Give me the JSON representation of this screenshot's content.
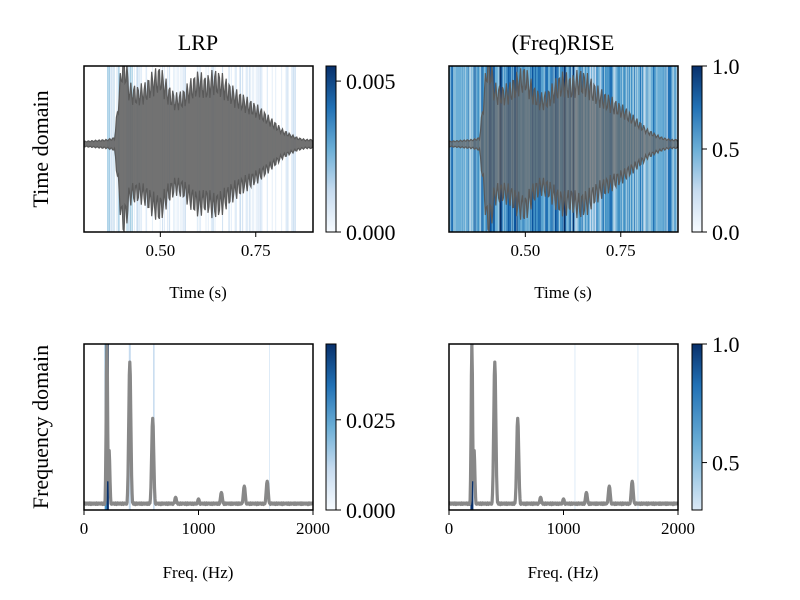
{
  "chart_data": [
    {
      "id": "lrp-time",
      "type": "line",
      "title": "LRP",
      "ylabel": "Time domain",
      "xlabel": "Time (s)",
      "xlim": [
        0.3,
        0.9
      ],
      "xticks": [
        {
          "value": 0.5,
          "label": "0.50"
        },
        {
          "value": 0.75,
          "label": "0.75"
        }
      ],
      "series_description": "audio waveform (amplitude envelope)",
      "envelope_x": [
        0.3,
        0.33,
        0.36,
        0.38,
        0.39,
        0.4,
        0.41,
        0.42,
        0.44,
        0.46,
        0.48,
        0.5,
        0.52,
        0.54,
        0.56,
        0.58,
        0.6,
        0.62,
        0.64,
        0.66,
        0.68,
        0.7,
        0.72,
        0.74,
        0.76,
        0.78,
        0.8,
        0.82,
        0.84,
        0.86,
        0.88,
        0.9
      ],
      "envelope_y": [
        0.03,
        0.04,
        0.05,
        0.07,
        0.5,
        1.0,
        0.92,
        0.65,
        0.62,
        0.66,
        0.78,
        0.84,
        0.64,
        0.54,
        0.58,
        0.7,
        0.78,
        0.72,
        0.8,
        0.76,
        0.66,
        0.58,
        0.52,
        0.46,
        0.4,
        0.32,
        0.24,
        0.16,
        0.11,
        0.07,
        0.05,
        0.05
      ],
      "relevance_cmap": "Blues",
      "colorbar": {
        "range": [
          0,
          0.0055
        ],
        "ticks": [
          {
            "value": 0.0,
            "label": "0.000"
          },
          {
            "value": 0.005,
            "label": "0.005"
          }
        ]
      }
    },
    {
      "id": "freqrise-time",
      "type": "line",
      "title": "(Freq)RISE",
      "xlabel": "Time (s)",
      "xlim": [
        0.3,
        0.9
      ],
      "xticks": [
        {
          "value": 0.5,
          "label": "0.50"
        },
        {
          "value": 0.75,
          "label": "0.75"
        }
      ],
      "series_description": "audio waveform (amplitude envelope)",
      "relevance_cmap": "Blues",
      "colorbar": {
        "range": [
          0,
          1.0
        ],
        "ticks": [
          {
            "value": 0.0,
            "label": "0.0"
          },
          {
            "value": 0.5,
            "label": "0.5"
          },
          {
            "value": 1.0,
            "label": "1.0"
          }
        ]
      }
    },
    {
      "id": "lrp-freq",
      "type": "line",
      "ylabel": "Frequency domain",
      "xlabel": "Freq. (Hz)",
      "xlim": [
        0,
        2000
      ],
      "xticks": [
        {
          "value": 0,
          "label": "0"
        },
        {
          "value": 1000,
          "label": "1000"
        },
        {
          "value": 2000,
          "label": "2000"
        }
      ],
      "peaks_hz": [
        200,
        220,
        400,
        600,
        800,
        1000,
        1200,
        1400,
        1600
      ],
      "peaks_height": [
        1.0,
        0.35,
        0.9,
        0.55,
        0.06,
        0.05,
        0.09,
        0.13,
        0.16
      ],
      "relevance_cmap": "Blues",
      "colorbar": {
        "range": [
          0,
          0.046
        ],
        "ticks": [
          {
            "value": 0.0,
            "label": "0.000"
          },
          {
            "value": 0.025,
            "label": "0.025"
          }
        ]
      }
    },
    {
      "id": "freqrise-freq",
      "type": "line",
      "xlabel": "Freq. (Hz)",
      "xlim": [
        0,
        2000
      ],
      "xticks": [
        {
          "value": 0,
          "label": "0"
        },
        {
          "value": 1000,
          "label": "1000"
        },
        {
          "value": 2000,
          "label": "2000"
        }
      ],
      "peaks_hz": [
        200,
        220,
        400,
        600,
        800,
        1000,
        1200,
        1400,
        1600
      ],
      "peaks_height": [
        1.0,
        0.35,
        0.9,
        0.55,
        0.06,
        0.05,
        0.09,
        0.13,
        0.16
      ],
      "relevance_cmap": "Blues",
      "colorbar": {
        "range": [
          0.3,
          1.0
        ],
        "ticks": [
          {
            "value": 0.5,
            "label": "0.5"
          },
          {
            "value": 1.0,
            "label": "1.0"
          }
        ]
      }
    }
  ]
}
